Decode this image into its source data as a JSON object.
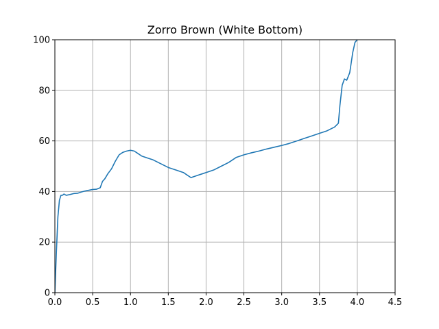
{
  "chart_data": {
    "type": "line",
    "title": "Zorro Brown (White Bottom)",
    "xlabel": "",
    "ylabel": "",
    "xlim": [
      0.0,
      4.5
    ],
    "ylim": [
      0,
      100
    ],
    "xticks": [
      0.0,
      0.5,
      1.0,
      1.5,
      2.0,
      2.5,
      3.0,
      3.5,
      4.0,
      4.5
    ],
    "xtick_labels": [
      "0.0",
      "0.5",
      "1.0",
      "1.5",
      "2.0",
      "2.5",
      "3.0",
      "3.5",
      "4.0",
      "4.5"
    ],
    "yticks": [
      0,
      20,
      40,
      60,
      80,
      100
    ],
    "ytick_labels": [
      "0",
      "20",
      "40",
      "60",
      "80",
      "100"
    ],
    "grid": true,
    "series": [
      {
        "color": "#1f77b4",
        "x": [
          0.0,
          0.02,
          0.04,
          0.06,
          0.08,
          0.1,
          0.12,
          0.15,
          0.2,
          0.25,
          0.3,
          0.35,
          0.4,
          0.45,
          0.5,
          0.55,
          0.6,
          0.63,
          0.66,
          0.7,
          0.75,
          0.8,
          0.85,
          0.9,
          0.95,
          1.0,
          1.05,
          1.1,
          1.15,
          1.2,
          1.3,
          1.4,
          1.5,
          1.6,
          1.7,
          1.75,
          1.8,
          1.85,
          1.9,
          1.95,
          2.0,
          2.1,
          2.2,
          2.3,
          2.4,
          2.5,
          2.6,
          2.7,
          2.8,
          2.9,
          3.0,
          3.1,
          3.2,
          3.3,
          3.4,
          3.5,
          3.6,
          3.7,
          3.75,
          3.77,
          3.8,
          3.83,
          3.86,
          3.9,
          3.94,
          3.97,
          4.0
        ],
        "y": [
          0.0,
          16.0,
          30.0,
          36.5,
          38.5,
          38.5,
          39.0,
          38.5,
          38.8,
          39.2,
          39.3,
          39.8,
          40.2,
          40.5,
          40.8,
          40.9,
          41.5,
          44.0,
          45.0,
          47.0,
          49.0,
          52.0,
          54.5,
          55.5,
          56.0,
          56.3,
          56.0,
          55.0,
          54.0,
          53.5,
          52.5,
          51.0,
          49.5,
          48.5,
          47.5,
          46.5,
          45.5,
          46.0,
          46.5,
          47.0,
          47.5,
          48.5,
          50.0,
          51.5,
          53.5,
          54.5,
          55.3,
          56.0,
          56.8,
          57.5,
          58.2,
          59.0,
          60.0,
          61.0,
          62.0,
          63.0,
          64.0,
          65.5,
          67.0,
          74.0,
          82.0,
          84.5,
          84.0,
          87.0,
          95.0,
          99.0,
          100.0
        ]
      }
    ]
  }
}
